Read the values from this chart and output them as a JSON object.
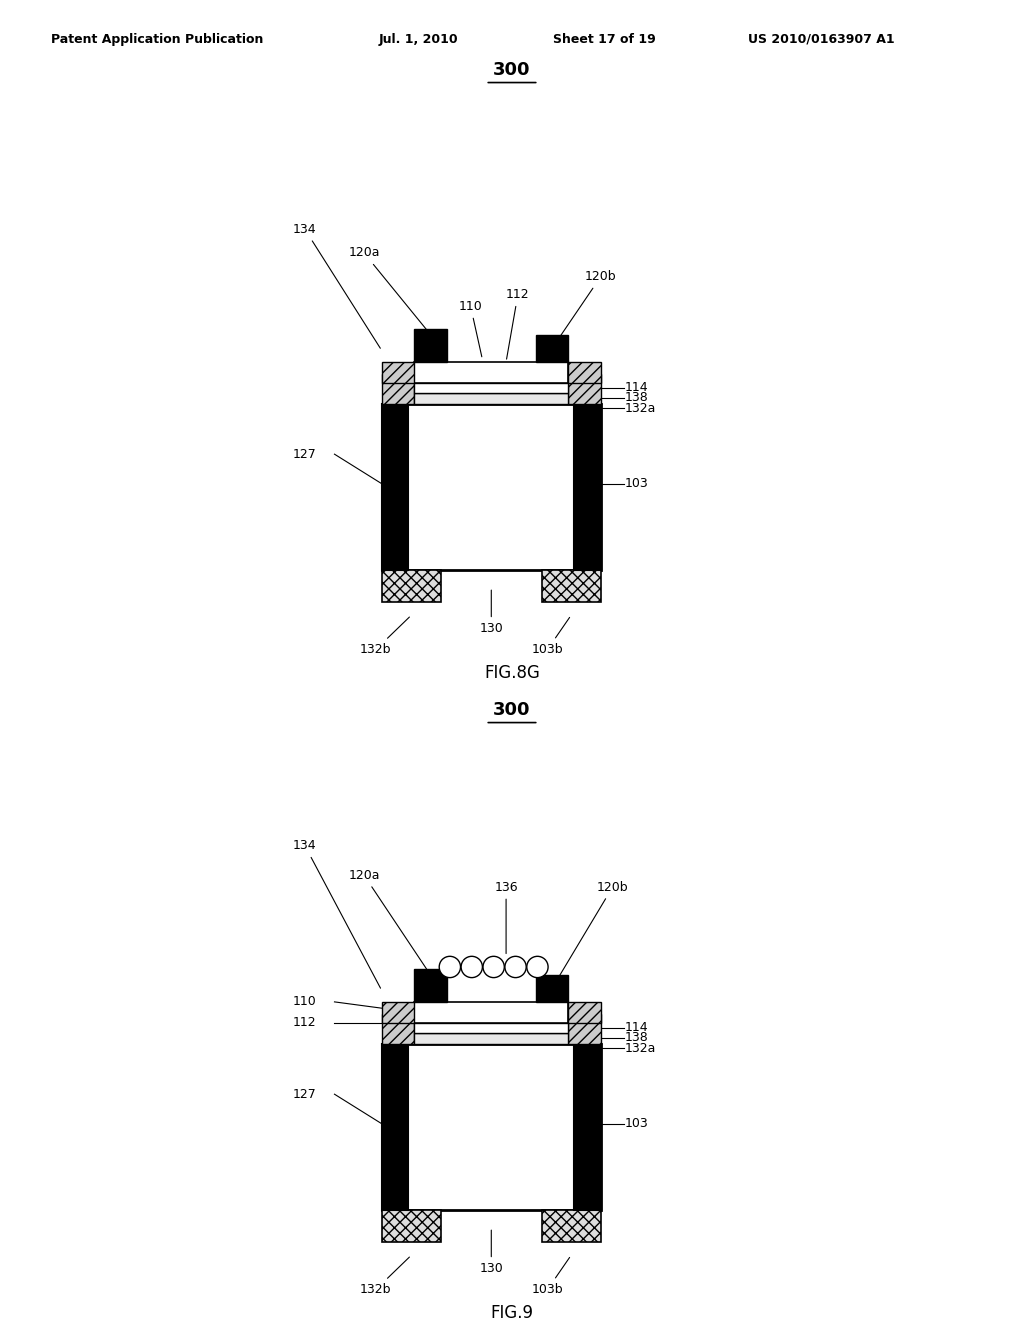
{
  "page_header": "Patent Application Publication    Jul. 1, 2010   Sheet 17 of 19    US 2010/0163907 A1",
  "fig8g_label": "FIG.8G",
  "fig9_label": "FIG.9",
  "title_label": "300",
  "bg_color": "#ffffff",
  "line_color": "#000000",
  "hatch_color": "#555555",
  "black_fill": "#000000",
  "gray_fill": "#888888",
  "light_gray": "#cccccc",
  "white_fill": "#ffffff"
}
